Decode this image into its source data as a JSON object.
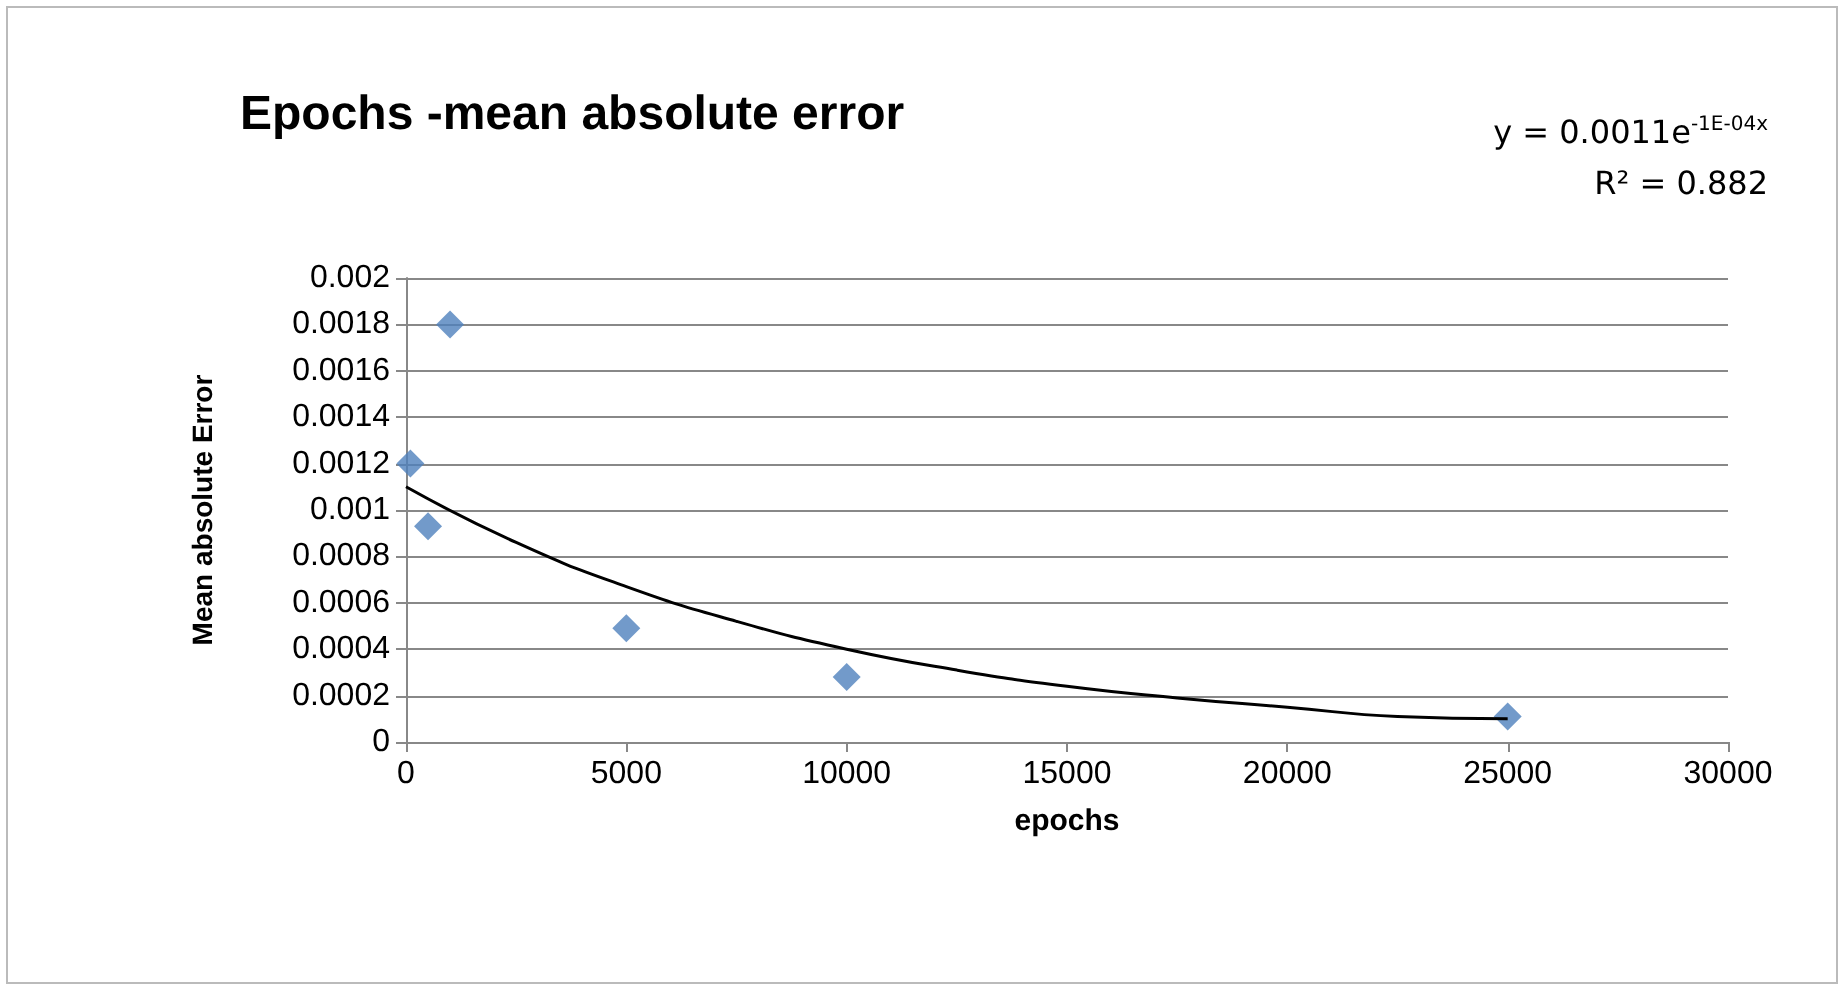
{
  "chart_data": {
    "type": "scatter",
    "title": "Epochs -mean absolute error",
    "xlabel": "epochs",
    "ylabel": "Mean absolute Error",
    "annotations": [
      "y = 0.0011e$^{-1E-04x}$",
      "R² = 0.882"
    ],
    "series": [
      {
        "type": "scatter",
        "color": "#4f81bd",
        "marker": "diamond",
        "x": [
          100,
          500,
          1000,
          5000,
          10000,
          25000
        ],
        "values": [
          0.0012,
          0.00093,
          0.0018,
          0.00049,
          0.00028,
          0.00011
        ]
      },
      {
        "type": "line",
        "color": "#000000",
        "marker": "none",
        "x": [
          0,
          2500,
          5000,
          7500,
          10000,
          12500,
          15000,
          17500,
          20000,
          22500,
          25000
        ],
        "values": [
          0.0011,
          0.00086,
          0.00067,
          0.00052,
          0.0004,
          0.00031,
          0.00024,
          0.00019,
          0.00015,
          0.00011,
          0.0001
        ]
      }
    ],
    "xlim": [
      0,
      30000
    ],
    "xticks": [
      0,
      5000,
      10000,
      15000,
      20000,
      25000,
      30000
    ],
    "ylim": [
      0,
      0.002
    ],
    "yticks": [
      0,
      0.0002,
      0.0004,
      0.0006,
      0.0008,
      0.001,
      0.0012,
      0.0014,
      0.0016,
      0.0018,
      0.002
    ],
    "grid": "y"
  }
}
